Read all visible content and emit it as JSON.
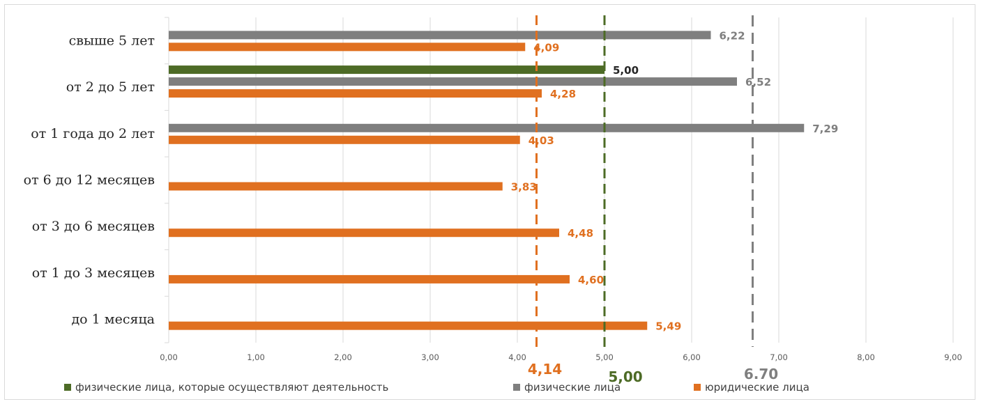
{
  "chart_data": {
    "type": "bar",
    "orientation": "horizontal",
    "categories": [
      "свыше 5 лет",
      "от 2 до 5 лет",
      "от 1 года до 2 лет",
      "от 6 до 12 месяцев",
      "от 3 до 6 месяцев",
      "от 1 до 3 месяцев",
      "до 1 месяца"
    ],
    "series": [
      {
        "name": "физические лица, которые осуществляют деятельность",
        "color": "#4d6b26",
        "values": [
          null,
          5.0,
          null,
          null,
          null,
          null,
          null
        ],
        "labels": [
          "",
          "5,00",
          "",
          "",
          "",
          "",
          ""
        ]
      },
      {
        "name": "физические лица",
        "color": "#7f7f7f",
        "values": [
          6.22,
          6.52,
          7.29,
          null,
          null,
          null,
          null
        ],
        "labels": [
          "6,22",
          "6,52",
          "7,29",
          "",
          "",
          "",
          ""
        ]
      },
      {
        "name": "юридические лица",
        "color": "#e07020",
        "values": [
          4.09,
          4.28,
          4.03,
          3.83,
          4.48,
          4.6,
          5.49
        ],
        "labels": [
          "4,09",
          "4,28",
          "4,03",
          "3,83",
          "4,48",
          "4,60",
          "5,49"
        ]
      }
    ],
    "xlim": [
      0,
      9
    ],
    "xticks": [
      "0,00",
      "1,00",
      "2,00",
      "3,00",
      "4,00",
      "5,00",
      "6,00",
      "7,00",
      "8,00",
      "9,00"
    ],
    "grid": "vertical",
    "legend_position": "bottom",
    "reference_lines": [
      {
        "value": 4.14,
        "label": "4,14",
        "color": "#e07020"
      },
      {
        "value": 5.0,
        "label": "5,00",
        "color": "#4d6b26"
      },
      {
        "value": 6.7,
        "label": "6.70",
        "color": "#7f7f7f"
      }
    ]
  }
}
